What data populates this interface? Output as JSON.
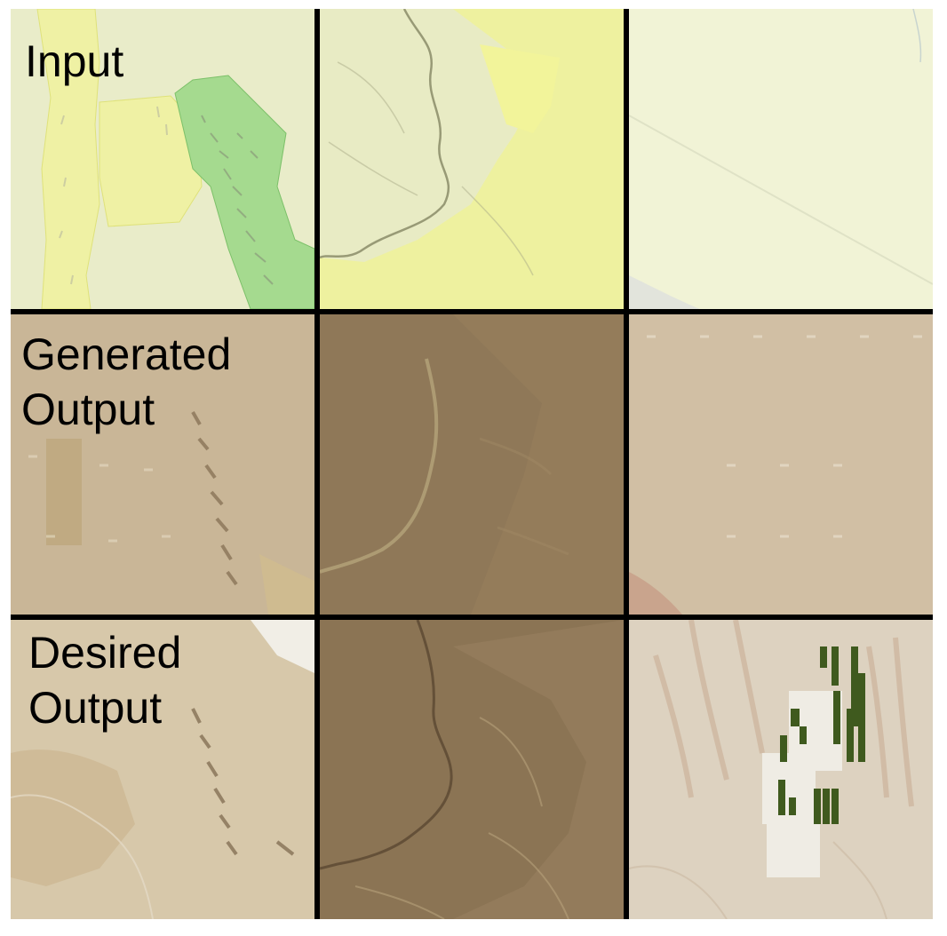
{
  "rows": [
    {
      "label": "Input"
    },
    {
      "label": "Generated\nOutput"
    },
    {
      "label": "Desired\nOutput"
    }
  ],
  "colors": {
    "grid_border": "#000000",
    "map_base": "#ecefd0",
    "map_yellow": "#f0f29a",
    "map_green": "#9fd88a",
    "generated_tan": "#c9b595",
    "generated_dark": "#8f7858",
    "satellite_light": "#d8ccb4",
    "satellite_dark": "#7e6a4c",
    "field_green": "#3f5a1e"
  }
}
